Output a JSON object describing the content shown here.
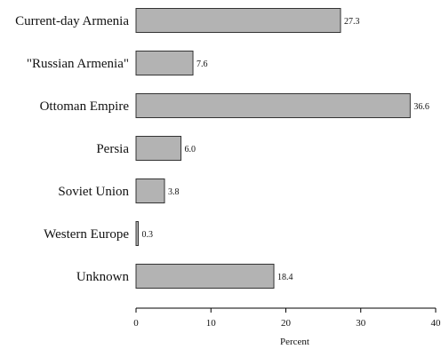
{
  "chart_data": {
    "type": "bar",
    "orientation": "horizontal",
    "categories": [
      "Current-day Armenia",
      "\"Russian Armenia\"",
      "Ottoman Empire",
      "Persia",
      "Soviet Union",
      "Western Europe",
      "Unknown"
    ],
    "values": [
      27.3,
      7.6,
      36.6,
      6.0,
      3.8,
      0.3,
      18.4
    ],
    "value_labels": [
      "27.3",
      "7.6",
      "36.6",
      "6.0",
      "3.8",
      "0.3",
      "18.4"
    ],
    "xlabel": "Percent",
    "ylabel": "",
    "xlim": [
      0,
      40
    ],
    "xticks": [
      0,
      10,
      20,
      30,
      40
    ],
    "grid": false,
    "colors": {
      "bar_fill": "#b3b3b3",
      "bar_stroke": "#333333",
      "axis": "#000000"
    }
  }
}
